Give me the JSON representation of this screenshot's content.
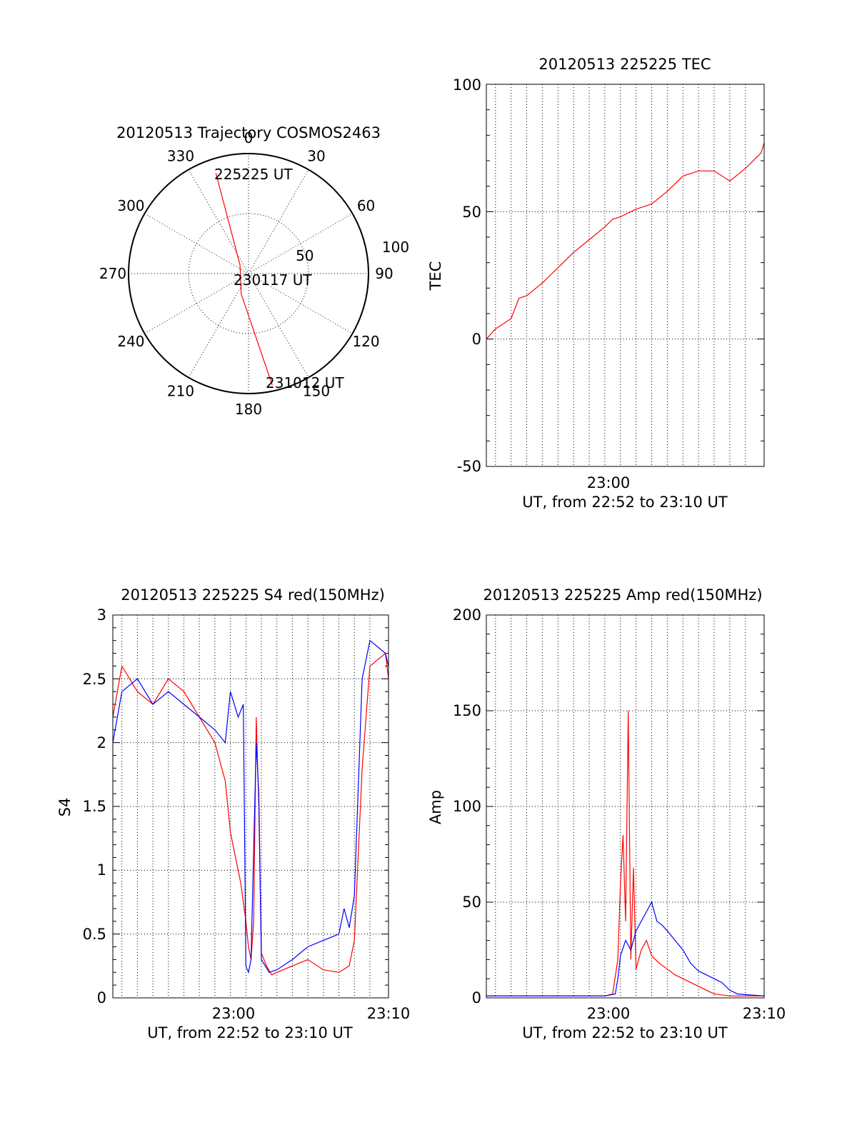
{
  "colors": {
    "red_series": "#ff0000",
    "blue_series": "#0000ff",
    "axes": "#000000",
    "background": "#ffffff"
  },
  "chart_data": [
    {
      "id": "trajectory",
      "type": "polar",
      "title": "20120513 Trajectory COSMOS2463",
      "azimuth_labels": [
        "0",
        "30",
        "60",
        "90",
        "120",
        "150",
        "180",
        "210",
        "240",
        "270",
        "300",
        "330"
      ],
      "radial_labels": [
        "50",
        "100"
      ],
      "rlim": [
        0,
        100
      ],
      "grid": true,
      "track": {
        "color": "#ff0000",
        "points": [
          {
            "az": 342,
            "r": 88
          },
          {
            "az": 315,
            "r": 10
          },
          {
            "az": 200,
            "r": 18
          },
          {
            "az": 168,
            "r": 95
          }
        ]
      },
      "annotations": [
        "225225 UT",
        "230117 UT",
        "231012 UT"
      ]
    },
    {
      "id": "tec",
      "type": "line",
      "title": "20120513 225225 TEC",
      "xlabel": "UT, from 22:52 to 23:10 UT",
      "ylabel": "TEC",
      "x_tick_labels": [
        "23:00"
      ],
      "y_tick_labels": [
        "-50",
        "0",
        "50",
        "100"
      ],
      "xlim": [
        "22:52:25",
        "23:10:12"
      ],
      "ylim": [
        -50,
        100
      ],
      "grid": true,
      "series": [
        {
          "color": "#ff0000",
          "x": [
            "22:52:25",
            "22:53:00",
            "22:54:00",
            "22:54:30",
            "22:55:00",
            "22:56:00",
            "22:56:30",
            "22:57:00",
            "22:58:00",
            "22:59:00",
            "23:00:00",
            "23:00:30",
            "23:01:00",
            "23:02:00",
            "23:02:30",
            "23:03:00",
            "23:04:00",
            "23:05:00",
            "23:06:00",
            "23:07:00",
            "23:08:00",
            "23:09:00",
            "23:10:00",
            "23:10:12"
          ],
          "y": [
            0,
            4,
            8,
            16,
            17,
            22,
            25,
            28,
            34,
            39,
            44,
            47,
            48,
            51,
            52,
            53,
            58,
            64,
            66,
            66,
            62,
            67,
            73,
            77
          ]
        }
      ]
    },
    {
      "id": "s4",
      "type": "line",
      "title": "20120513 225225 S4 red(150MHz)",
      "xlabel": "UT, from 22:52 to 23:10 UT",
      "ylabel": "S4",
      "x_tick_labels": [
        "23:00",
        "23:10"
      ],
      "y_tick_labels": [
        "0",
        "0.5",
        "1",
        "1.5",
        "2",
        "2.5",
        "3"
      ],
      "xlim": [
        "22:52:25",
        "23:10:12"
      ],
      "ylim": [
        0,
        3
      ],
      "grid": true,
      "series": [
        {
          "color": "#ff0000",
          "x": [
            "22:52:25",
            "22:53:00",
            "22:54:00",
            "22:55:00",
            "22:56:00",
            "22:57:00",
            "22:58:00",
            "22:59:00",
            "22:59:40",
            "23:00:00",
            "23:00:20",
            "23:00:40",
            "23:01:00",
            "23:01:10",
            "23:01:20",
            "23:01:30",
            "23:01:40",
            "23:01:50",
            "23:02:00",
            "23:02:20",
            "23:02:40",
            "23:03:00",
            "23:04:00",
            "23:05:00",
            "23:06:00",
            "23:07:00",
            "23:07:40",
            "23:08:00",
            "23:08:30",
            "23:09:00",
            "23:10:00",
            "23:10:12"
          ],
          "y": [
            2.2,
            2.6,
            2.4,
            2.3,
            2.5,
            2.4,
            2.2,
            2.0,
            1.7,
            1.3,
            1.1,
            0.9,
            0.6,
            0.4,
            0.3,
            0.6,
            2.2,
            1.5,
            0.35,
            0.25,
            0.18,
            0.2,
            0.25,
            0.3,
            0.22,
            0.2,
            0.25,
            0.45,
            1.8,
            2.6,
            2.7,
            2.5
          ]
        },
        {
          "color": "#0000ff",
          "x": [
            "22:52:25",
            "22:53:00",
            "22:54:00",
            "22:55:00",
            "22:56:00",
            "22:57:00",
            "22:58:00",
            "22:59:00",
            "22:59:40",
            "23:00:00",
            "23:00:30",
            "23:00:50",
            "23:01:00",
            "23:01:10",
            "23:01:20",
            "23:01:40",
            "23:01:50",
            "23:02:00",
            "23:02:30",
            "23:03:00",
            "23:04:00",
            "23:05:00",
            "23:06:00",
            "23:07:00",
            "23:07:20",
            "23:07:40",
            "23:08:00",
            "23:08:30",
            "23:09:00",
            "23:10:00",
            "23:10:12"
          ],
          "y": [
            2.0,
            2.4,
            2.5,
            2.3,
            2.4,
            2.3,
            2.2,
            2.1,
            2.0,
            2.4,
            2.2,
            2.3,
            0.25,
            0.2,
            0.3,
            2.0,
            1.6,
            0.3,
            0.2,
            0.22,
            0.3,
            0.4,
            0.45,
            0.5,
            0.7,
            0.55,
            0.8,
            2.5,
            2.8,
            2.7,
            2.6
          ]
        }
      ]
    },
    {
      "id": "amp",
      "type": "line",
      "title": "20120513 225225 Amp red(150MHz)",
      "xlabel": "UT, from 22:52 to 23:10 UT",
      "ylabel": "Amp",
      "x_tick_labels": [
        "23:00",
        "23:10"
      ],
      "y_tick_labels": [
        "0",
        "50",
        "100",
        "150",
        "200"
      ],
      "xlim": [
        "22:52:25",
        "23:10:12"
      ],
      "ylim": [
        0,
        200
      ],
      "grid": true,
      "series": [
        {
          "color": "#ff0000",
          "x": [
            "22:52:25",
            "23:00:00",
            "23:00:30",
            "23:00:50",
            "23:01:00",
            "23:01:10",
            "23:01:20",
            "23:01:30",
            "23:01:40",
            "23:01:50",
            "23:02:00",
            "23:02:20",
            "23:02:40",
            "23:03:00",
            "23:03:30",
            "23:04:00",
            "23:04:30",
            "23:05:00",
            "23:05:30",
            "23:06:00",
            "23:06:30",
            "23:07:00",
            "23:08:00",
            "23:10:12"
          ],
          "y": [
            1,
            1,
            2,
            20,
            60,
            85,
            40,
            150,
            20,
            68,
            15,
            25,
            30,
            22,
            18,
            15,
            12,
            10,
            8,
            6,
            4,
            2,
            1,
            1
          ]
        },
        {
          "color": "#0000ff",
          "x": [
            "22:52:25",
            "23:00:00",
            "23:00:40",
            "23:00:50",
            "23:01:00",
            "23:01:20",
            "23:01:40",
            "23:02:00",
            "23:02:20",
            "23:02:40",
            "23:03:00",
            "23:03:20",
            "23:03:40",
            "23:04:00",
            "23:04:30",
            "23:05:00",
            "23:05:30",
            "23:06:00",
            "23:06:30",
            "23:07:00",
            "23:07:30",
            "23:08:00",
            "23:08:30",
            "23:10:12"
          ],
          "y": [
            1,
            1,
            2,
            10,
            22,
            30,
            25,
            35,
            40,
            45,
            50,
            40,
            38,
            35,
            30,
            25,
            18,
            14,
            12,
            10,
            8,
            4,
            2,
            1
          ]
        }
      ]
    }
  ]
}
